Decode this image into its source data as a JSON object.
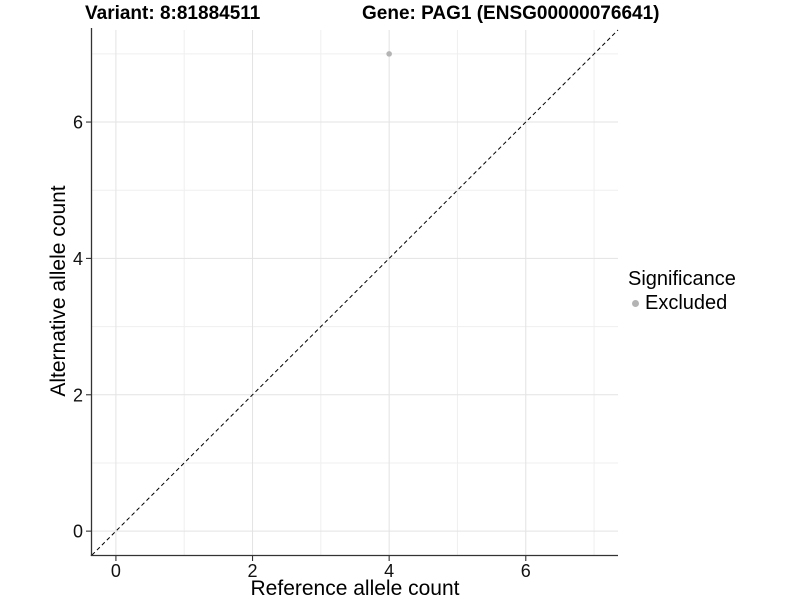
{
  "chart_data": {
    "type": "scatter",
    "title_left": "Variant: 8:81884511",
    "title_right": "Gene: PAG1 (ENSG00000076641)",
    "xlabel": "Reference allele count",
    "ylabel": "Alternative allele count",
    "xlim": [
      -0.35,
      7.35
    ],
    "ylim": [
      -0.35,
      7.35
    ],
    "x_ticks": [
      0,
      2,
      4,
      6
    ],
    "y_ticks": [
      0,
      2,
      4,
      6
    ],
    "x_minor_ticks": [
      1,
      3,
      5,
      7
    ],
    "y_minor_ticks": [
      1,
      3,
      5,
      7
    ],
    "grid": "major+minor, light gray on white panel",
    "reference_line": {
      "kind": "identity y=x",
      "style": "dashed",
      "color": "#000000"
    },
    "series": [
      {
        "name": "Excluded",
        "color": "#b4b4b4",
        "points": [
          [
            4,
            7
          ]
        ]
      }
    ],
    "legend": {
      "title": "Significance",
      "position": "right",
      "items": [
        {
          "label": "Excluded",
          "color": "#b4b4b4",
          "marker": "circle"
        }
      ]
    }
  },
  "colors": {
    "grid_major": "#e3e3e3",
    "grid_minor": "#efefef",
    "axis_line": "#333333",
    "tick_label": "#111111",
    "point": "#b4b4b4",
    "background": "#ffffff"
  }
}
